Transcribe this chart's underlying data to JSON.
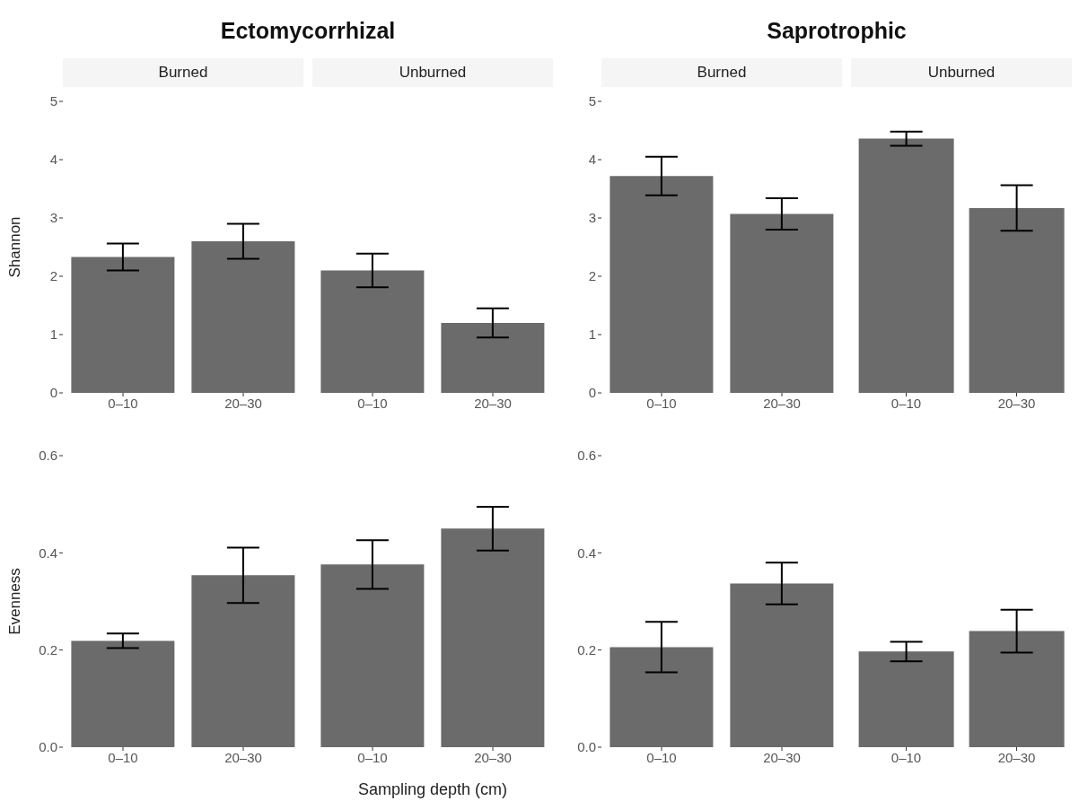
{
  "chart_data": [
    {
      "type": "bar",
      "title": "Ectomycorrhizal",
      "subtitle": "Burned",
      "ylabel": "Shannon",
      "categories": [
        "0–10",
        "20–30"
      ],
      "values": [
        2.33,
        2.6
      ],
      "errors": [
        0.23,
        0.3
      ],
      "color": "#6b6b6b",
      "ylim": [
        0,
        5
      ],
      "yticks": [
        0,
        1,
        2,
        3,
        4,
        5
      ]
    },
    {
      "type": "bar",
      "subtitle": "Unburned",
      "categories": [
        "0–10",
        "20–30"
      ],
      "values": [
        2.1,
        1.2
      ],
      "errors": [
        0.29,
        0.25
      ],
      "color": "#6b6b6b",
      "ylim": [
        0,
        5
      ],
      "tick_labels": "x"
    },
    {
      "type": "bar",
      "title": "Saprotrophic",
      "subtitle": "Burned",
      "categories": [
        "0–10",
        "20–30"
      ],
      "values": [
        3.72,
        3.07
      ],
      "errors": [
        0.33,
        0.27
      ],
      "color": "#6b6b6b",
      "ylim": [
        0,
        5
      ],
      "yticks": [
        0,
        1,
        2,
        3,
        4,
        5
      ]
    },
    {
      "type": "bar",
      "subtitle": "Unburned",
      "categories": [
        "0–10",
        "20–30"
      ],
      "values": [
        4.36,
        3.17
      ],
      "errors": [
        0.12,
        0.39
      ],
      "color": "#6b6b6b",
      "ylim": [
        0,
        5
      ],
      "tick_labels": "x"
    },
    {
      "type": "bar",
      "ylabel": "Evenness",
      "categories": [
        "0–10",
        "20–30"
      ],
      "values": [
        0.219,
        0.354
      ],
      "errors": [
        0.015,
        0.057
      ],
      "color": "#6b6b6b",
      "ylim": [
        0,
        0.6
      ],
      "yticks": [
        {
          "value": 0,
          "label": "0.0"
        },
        {
          "value": 0.2,
          "label": "0.2"
        },
        {
          "value": 0.4,
          "label": "0.4"
        },
        {
          "value": 0.6,
          "label": "0.6"
        }
      ]
    },
    {
      "type": "bar",
      "xlabel": "Sampling depth (cm)",
      "categories": [
        "0–10",
        "20–30"
      ],
      "values": [
        0.376,
        0.45
      ],
      "errors": [
        0.05,
        0.045
      ],
      "color": "#6b6b6b",
      "ylim": [
        0,
        0.6
      ],
      "tick_labels": "x"
    },
    {
      "type": "bar",
      "categories": [
        "0–10",
        "20–30"
      ],
      "values": [
        0.206,
        0.337
      ],
      "errors": [
        0.052,
        0.043
      ],
      "color": "#6b6b6b",
      "ylim": [
        0,
        0.6
      ],
      "yticks": [
        {
          "value": 0,
          "label": "0.0"
        },
        {
          "value": 0.2,
          "label": "0.2"
        },
        {
          "value": 0.4,
          "label": "0.4"
        },
        {
          "value": 0.6,
          "label": "0.6"
        }
      ]
    },
    {
      "type": "bar",
      "categories": [
        "0–10",
        "20–30"
      ],
      "values": [
        0.197,
        0.239
      ],
      "errors": [
        0.02,
        0.044
      ],
      "color": "#6b6b6b",
      "ylim": [
        0,
        0.6
      ],
      "tick_labels": "x"
    }
  ]
}
